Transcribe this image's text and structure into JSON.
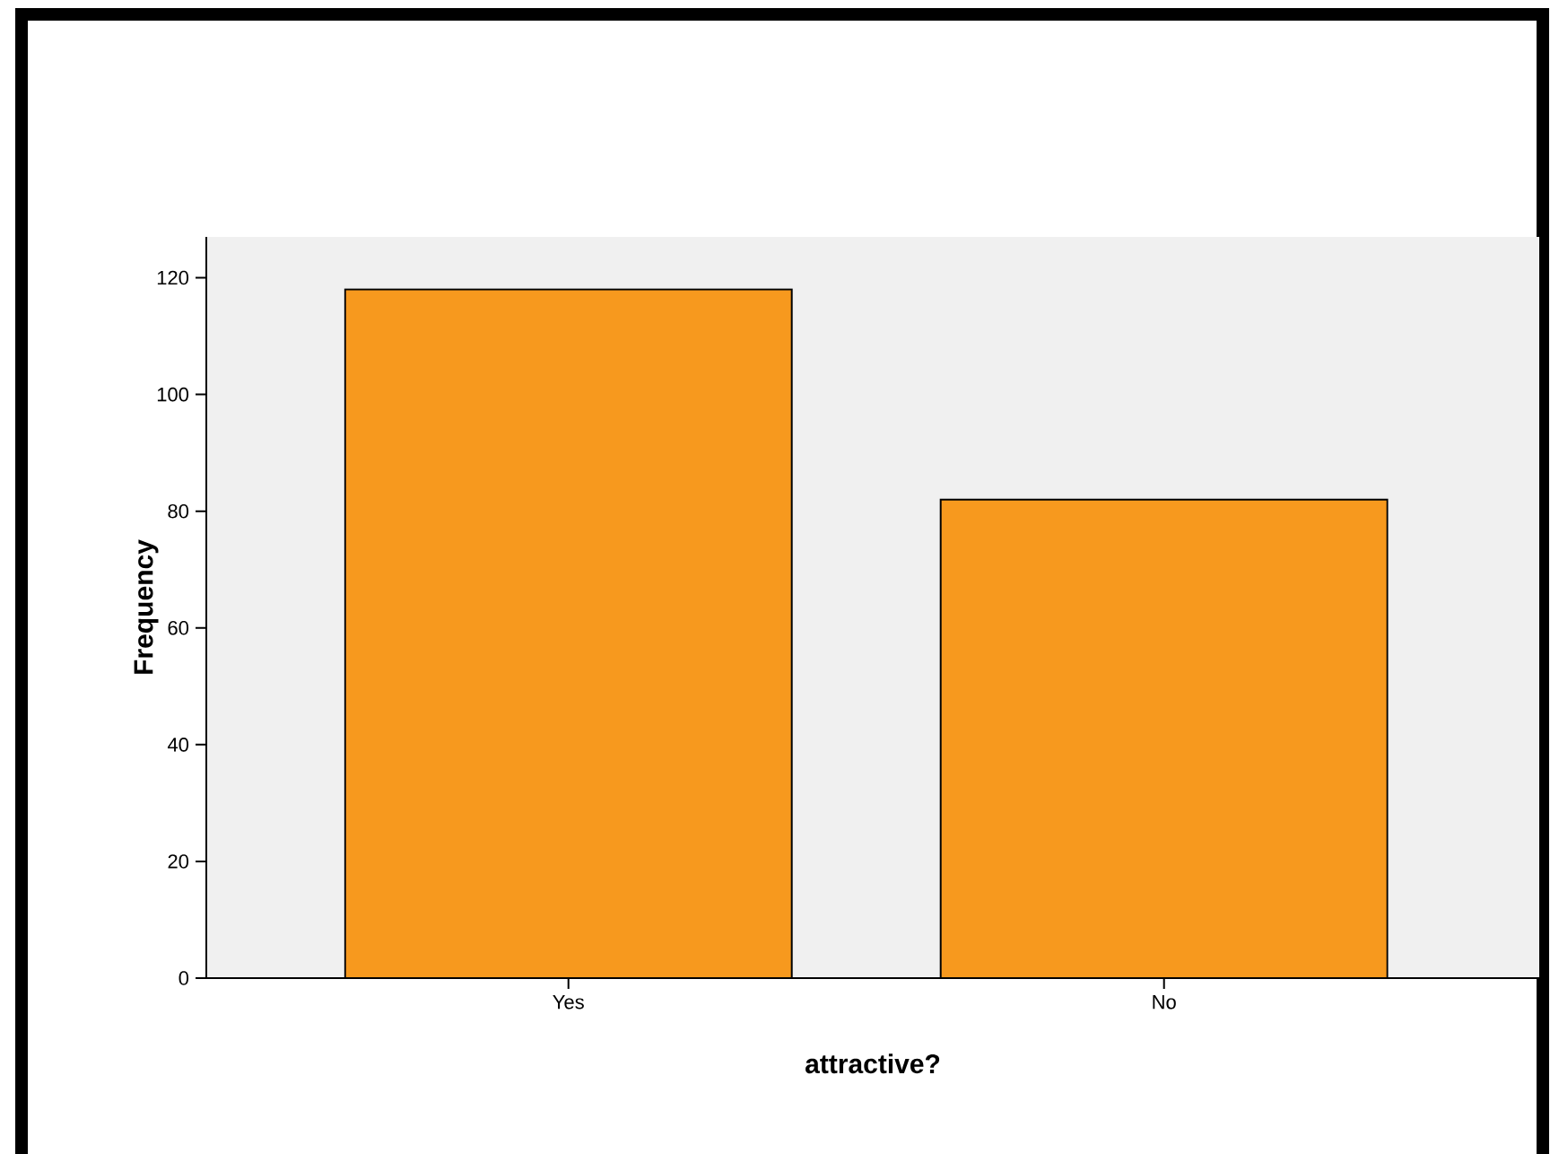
{
  "chart_data": {
    "type": "bar",
    "categories": [
      "Yes",
      "No"
    ],
    "values": [
      118,
      82
    ],
    "color": "#f7991e",
    "xlabel": "attractive?",
    "ylabel": "Frequency",
    "ylim": [
      0,
      127
    ],
    "yticks": [
      0,
      20,
      40,
      60,
      80,
      100,
      120
    ]
  }
}
